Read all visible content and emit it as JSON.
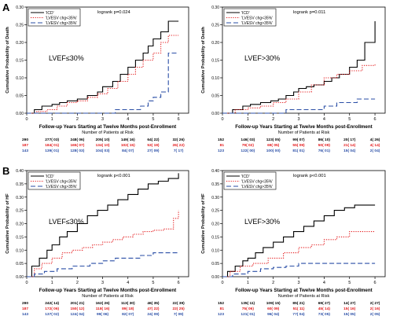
{
  "figure": {
    "panel_letters": [
      "A",
      "B"
    ]
  },
  "colors": {
    "icd": "#000000",
    "gt35": "#e41a1c",
    "le35": "#2a4ea6",
    "axis": "#000000",
    "text": "#000000"
  },
  "chart_data": [
    {
      "type": "line",
      "panel": "A",
      "ylabel": "Cumulative Probability of Death",
      "xlabel": "Follow-up Years Starting at Twelve Months post-Enrollment",
      "xlim": [
        0,
        6.4
      ],
      "ylim": [
        0,
        0.3
      ],
      "xticks": [
        "0",
        "1",
        "2",
        "3",
        "4",
        "5",
        "6"
      ],
      "yticks": [
        "0.00",
        "0.05",
        "0.10",
        "0.15",
        "0.20",
        "0.25",
        "0.30"
      ],
      "logrank": "logrank p=0.024",
      "annotation": "LVEF≤30%",
      "series": [
        {
          "name": "'ICD'",
          "style": "solid",
          "x": [
            0,
            0.3,
            0.6,
            1.0,
            1.3,
            1.6,
            2.0,
            2.4,
            2.8,
            3.0,
            3.4,
            3.7,
            4.0,
            4.3,
            4.6,
            4.8,
            5.0,
            5.3,
            5.6,
            6.0
          ],
          "y": [
            0.0,
            0.01,
            0.02,
            0.025,
            0.03,
            0.035,
            0.04,
            0.05,
            0.06,
            0.075,
            0.09,
            0.11,
            0.13,
            0.15,
            0.17,
            0.19,
            0.21,
            0.23,
            0.26,
            0.26
          ]
        },
        {
          "name": "'LVESV chg<35%'",
          "style": "dotted",
          "x": [
            0,
            0.4,
            0.8,
            1.2,
            1.6,
            2.0,
            2.4,
            2.8,
            3.2,
            3.6,
            4.0,
            4.3,
            4.6,
            5.0,
            5.3,
            5.6,
            6.0
          ],
          "y": [
            0.0,
            0.005,
            0.01,
            0.02,
            0.03,
            0.035,
            0.045,
            0.055,
            0.07,
            0.09,
            0.11,
            0.13,
            0.15,
            0.17,
            0.2,
            0.22,
            0.22
          ]
        },
        {
          "name": "'LVESV chg>35%'",
          "style": "dashed",
          "x": [
            0,
            1.5,
            2.5,
            3.3,
            3.5,
            4.5,
            4.8,
            5.0,
            5.3,
            5.6,
            6.0
          ],
          "y": [
            0.0,
            0.0,
            0.0,
            0.0,
            0.01,
            0.02,
            0.035,
            0.045,
            0.06,
            0.17,
            0.17
          ]
        }
      ],
      "risk_table": {
        "title": "Number of Patients at Risk",
        "rows": [
          {
            "color": "icd",
            "cells": [
              "290",
              "277( 03)",
              "248( 06)",
              "205( 10)",
              "149( 16)",
              "64( 22)",
              "32( 26)"
            ]
          },
          {
            "color": "gt35",
            "cells": [
              "187",
              "184( 01)",
              "165( 07)",
              "134( 10)",
              "102( 15)",
              "53( 19)",
              "26( 22)"
            ]
          },
          {
            "color": "le35",
            "cells": [
              "143",
              "139( 01)",
              "128( 03)",
              "104( 03)",
              "84( 07)",
              "27( 09)",
              "7( 17)"
            ]
          }
        ]
      }
    },
    {
      "type": "line",
      "panel": "A",
      "ylabel": "Cumulative Probability of Death",
      "xlabel": "Follow-up Years Starting at Twelve Months post-Enrollment",
      "xlim": [
        0,
        6.4
      ],
      "ylim": [
        0,
        0.3
      ],
      "xticks": [
        "0",
        "1",
        "2",
        "3",
        "4",
        "5",
        "6"
      ],
      "yticks": [
        "0.00",
        "0.05",
        "0.10",
        "0.15",
        "0.20",
        "0.25",
        "0.30"
      ],
      "logrank": "logrank p=0.011",
      "annotation": "LVEF>30%",
      "series": [
        {
          "name": "'ICD'",
          "style": "solid",
          "x": [
            0,
            0.4,
            0.8,
            1.1,
            1.5,
            1.9,
            2.2,
            2.5,
            2.8,
            3.0,
            3.3,
            3.6,
            4.0,
            4.3,
            4.6,
            5.0,
            5.3,
            5.6,
            6.0
          ],
          "y": [
            0.0,
            0.01,
            0.02,
            0.025,
            0.03,
            0.035,
            0.04,
            0.05,
            0.06,
            0.07,
            0.075,
            0.08,
            0.09,
            0.1,
            0.11,
            0.13,
            0.15,
            0.2,
            0.26
          ]
        },
        {
          "name": "'LVESV chg<35%'",
          "style": "dotted",
          "x": [
            0,
            0.5,
            1.0,
            1.5,
            2.0,
            2.5,
            3.0,
            3.5,
            4.0,
            4.5,
            5.0,
            5.5,
            6.0
          ],
          "y": [
            0.0,
            0.01,
            0.015,
            0.02,
            0.03,
            0.04,
            0.06,
            0.08,
            0.1,
            0.11,
            0.12,
            0.135,
            0.14
          ]
        },
        {
          "name": "'LVESV chg>35%'",
          "style": "dashed",
          "x": [
            0,
            2.0,
            2.5,
            3.0,
            3.5,
            4.0,
            4.5,
            5.0,
            5.3,
            6.0
          ],
          "y": [
            0.0,
            0.0,
            0.01,
            0.01,
            0.01,
            0.02,
            0.03,
            0.03,
            0.04,
            0.04
          ]
        }
      ],
      "risk_table": {
        "title": "Number of Patients at Risk",
        "rows": [
          {
            "color": "icd",
            "cells": [
              "152",
              "146( 03)",
              "123( 05)",
              "99( 07)",
              "86( 10)",
              "20( 17)",
              "4( 26)"
            ]
          },
          {
            "color": "gt35",
            "cells": [
              "81",
              "79( 02)",
              "69( 05)",
              "55( 09)",
              "50( 09)",
              "21( 14)",
              "4( 14)"
            ]
          },
          {
            "color": "le35",
            "cells": [
              "123",
              "122( 00)",
              "100( 00)",
              "81( 01)",
              "76( 01)",
              "15( 04)",
              "2( 04)"
            ]
          }
        ]
      }
    },
    {
      "type": "line",
      "panel": "B",
      "ylabel": "Cumulative Probability of HF",
      "xlabel": "Follow-up Years Starting at Twelve Months post-Enrollment",
      "xlim": [
        0,
        6.4
      ],
      "ylim": [
        0,
        0.4
      ],
      "xticks": [
        "0",
        "1",
        "2",
        "3",
        "4",
        "5",
        "6"
      ],
      "yticks": [
        "0.00",
        "0.05",
        "0.10",
        "0.15",
        "0.20",
        "0.25",
        "0.30",
        "0.35",
        "0.40"
      ],
      "logrank": "logrank p<0.001",
      "annotation": "LVEF≤30%",
      "series": [
        {
          "name": "'ICD'",
          "style": "solid",
          "x": [
            0,
            0.2,
            0.5,
            0.8,
            1.0,
            1.3,
            1.6,
            2.0,
            2.4,
            2.8,
            3.2,
            3.6,
            4.0,
            4.4,
            4.8,
            5.2,
            5.6,
            6.0
          ],
          "y": [
            0.0,
            0.04,
            0.07,
            0.1,
            0.12,
            0.15,
            0.17,
            0.2,
            0.23,
            0.25,
            0.27,
            0.29,
            0.31,
            0.33,
            0.35,
            0.36,
            0.37,
            0.39
          ]
        },
        {
          "name": "'LVESV chg<35%'",
          "style": "dotted",
          "x": [
            0,
            0.3,
            0.6,
            1.0,
            1.4,
            1.8,
            2.2,
            2.6,
            3.0,
            3.4,
            3.8,
            4.2,
            4.6,
            5.0,
            5.4,
            5.8,
            6.0
          ],
          "y": [
            0.0,
            0.03,
            0.05,
            0.07,
            0.09,
            0.1,
            0.11,
            0.12,
            0.13,
            0.14,
            0.15,
            0.16,
            0.17,
            0.175,
            0.18,
            0.22,
            0.25
          ]
        },
        {
          "name": "'LVESV chg>35%'",
          "style": "dashed",
          "x": [
            0,
            0.3,
            0.7,
            1.2,
            1.8,
            2.5,
            3.0,
            3.5,
            4.0,
            4.5,
            5.0,
            6.0
          ],
          "y": [
            0.0,
            0.01,
            0.02,
            0.03,
            0.04,
            0.05,
            0.06,
            0.07,
            0.07,
            0.08,
            0.09,
            0.09
          ]
        }
      ],
      "risk_table": {
        "title": "Number of Patients at Risk",
        "rows": [
          {
            "color": "icd",
            "cells": [
              "290",
              "242( 14)",
              "201( 21)",
              "162( 26)",
              "113( 30)",
              "46( 35)",
              "22( 39)"
            ]
          },
          {
            "color": "gt35",
            "cells": [
              "187",
              "172( 06)",
              "150( 12)",
              "118( 16)",
              "89( 18)",
              "47( 22)",
              "22( 25)"
            ]
          },
          {
            "color": "le35",
            "cells": [
              "143",
              "137( 02)",
              "124( 04)",
              "99( 06)",
              "82( 07)",
              "24( 09)",
              "7( 09)"
            ]
          }
        ]
      }
    },
    {
      "type": "line",
      "panel": "B",
      "ylabel": "Cumulative Probability of HF",
      "xlabel": "Follow-up Years Starting at Twelve Months post-Enrollment",
      "xlim": [
        0,
        6.4
      ],
      "ylim": [
        0,
        0.4
      ],
      "xticks": [
        "0",
        "1",
        "2",
        "3",
        "4",
        "5",
        "6"
      ],
      "yticks": [
        "0.00",
        "0.05",
        "0.10",
        "0.15",
        "0.20",
        "0.25",
        "0.30",
        "0.35",
        "0.40"
      ],
      "logrank": "logrank p<0.001",
      "annotation": "LVEF>30%",
      "series": [
        {
          "name": "'ICD'",
          "style": "solid",
          "x": [
            0,
            0.2,
            0.5,
            0.8,
            1.0,
            1.3,
            1.6,
            2.0,
            2.4,
            2.8,
            3.2,
            3.6,
            4.0,
            4.4,
            4.8,
            5.2,
            6.0
          ],
          "y": [
            0.0,
            0.02,
            0.04,
            0.06,
            0.07,
            0.09,
            0.11,
            0.13,
            0.15,
            0.17,
            0.19,
            0.21,
            0.23,
            0.25,
            0.26,
            0.27,
            0.27
          ]
        },
        {
          "name": "'LVESV chg<35%'",
          "style": "dotted",
          "x": [
            0,
            0.3,
            0.7,
            1.2,
            1.8,
            2.4,
            3.0,
            3.5,
            4.0,
            4.5,
            5.0,
            6.0
          ],
          "y": [
            0.0,
            0.02,
            0.04,
            0.05,
            0.07,
            0.09,
            0.11,
            0.12,
            0.14,
            0.15,
            0.17,
            0.17
          ]
        },
        {
          "name": "'LVESV chg>35%'",
          "style": "dashed",
          "x": [
            0,
            0.4,
            1.0,
            1.5,
            2.0,
            2.5,
            3.0,
            4.0,
            5.0,
            6.0
          ],
          "y": [
            0.0,
            0.01,
            0.02,
            0.03,
            0.035,
            0.04,
            0.05,
            0.05,
            0.05,
            0.05
          ]
        }
      ],
      "risk_table": {
        "title": "Number of Patients at Risk",
        "rows": [
          {
            "color": "icd",
            "cells": [
              "152",
              "135( 11)",
              "109( 15)",
              "85( 21)",
              "69( 27)",
              "14( 27)",
              "2( 27)"
            ]
          },
          {
            "color": "gt35",
            "cells": [
              "81",
              "75( 06)",
              "60( 09)",
              "51( 11)",
              "45( 14)",
              "15( 16)",
              "2( 16)"
            ]
          },
          {
            "color": "le35",
            "cells": [
              "123",
              "121( 01)",
              "96( 04)",
              "77( 04)",
              "73( 05)",
              "15( 05)",
              "2( 05)"
            ]
          }
        ]
      }
    }
  ]
}
